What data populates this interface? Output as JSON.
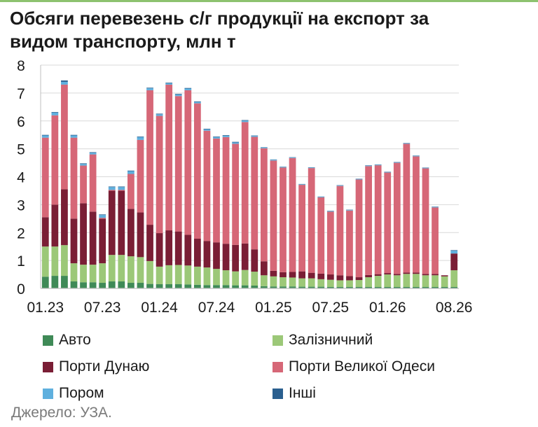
{
  "title_line1": "Обсяги перевезень с/г продукції на експорт за",
  "title_line2": "видом транспорту, млн т",
  "source": "Джерело: УЗА.",
  "colors": {
    "auto": "#3f8a57",
    "rail": "#9cc878",
    "danube": "#7a1e35",
    "odesa": "#d66777",
    "ferry": "#5fb0de",
    "other": "#2a5f8f",
    "grid": "#d9d9d9",
    "axis": "#bfbfbf",
    "top_rule": "#8dc26f"
  },
  "chart_data": {
    "type": "bar",
    "stacked": true,
    "title": "Обсяги перевезень с/г продукції на експорт за видом транспорту, млн т",
    "ylim": [
      0,
      8
    ],
    "yticks": [
      "0",
      "1",
      "2",
      "3",
      "4",
      "5",
      "6",
      "7",
      "8"
    ],
    "grid": true,
    "legend_position": "bottom",
    "categories": [
      "01.23",
      "02.23",
      "03.23",
      "04.23",
      "05.23",
      "06.23",
      "07.23",
      "08.23",
      "09.23",
      "10.23",
      "11.23",
      "12.23",
      "01.24",
      "02.24",
      "03.24",
      "04.24",
      "05.24",
      "06.24",
      "07.24",
      "08.24",
      "09.24",
      "10.24",
      "11.24",
      "12.24",
      "01.25",
      "02.25",
      "03.25",
      "04.25",
      "05.25",
      "06.25",
      "07.25",
      "08.25",
      "09.25",
      "10.25",
      "11.25",
      "12.25",
      "01.26",
      "02.26",
      "03.26",
      "04.26",
      "05.26",
      "06.26",
      "07.26",
      "08.26"
    ],
    "xtick_labels": [
      "01.23",
      "07.23",
      "01.24",
      "07.24",
      "01.25",
      "07.25",
      "01.26",
      "08.26"
    ],
    "series": [
      {
        "name": "Авто",
        "key": "auto",
        "values": [
          0.42,
          0.45,
          0.45,
          0.25,
          0.22,
          0.22,
          0.2,
          0.25,
          0.25,
          0.2,
          0.2,
          0.16,
          0.15,
          0.15,
          0.15,
          0.14,
          0.13,
          0.12,
          0.12,
          0.12,
          0.11,
          0.11,
          0.1,
          0.08,
          0.07,
          0.07,
          0.07,
          0.06,
          0.06,
          0.06,
          0.05,
          0.05,
          0.05,
          0.05,
          0.05,
          0.05,
          0.05,
          0.05,
          0.05,
          0.05,
          0.05,
          0.05,
          0.05,
          0.05
        ]
      },
      {
        "name": "Залізничний",
        "key": "rail",
        "values": [
          1.08,
          1.05,
          1.1,
          0.65,
          0.63,
          0.63,
          0.7,
          0.95,
          0.95,
          0.95,
          0.92,
          0.82,
          0.63,
          0.68,
          0.69,
          0.68,
          0.65,
          0.63,
          0.58,
          0.53,
          0.5,
          0.55,
          0.5,
          0.39,
          0.36,
          0.33,
          0.32,
          0.3,
          0.3,
          0.27,
          0.26,
          0.24,
          0.24,
          0.25,
          0.35,
          0.4,
          0.45,
          0.42,
          0.47,
          0.47,
          0.42,
          0.42,
          0.38,
          0.6
        ]
      },
      {
        "name": "Порти Дунаю",
        "key": "danube",
        "values": [
          1.05,
          1.5,
          2.0,
          1.6,
          2.2,
          1.9,
          1.6,
          2.3,
          2.3,
          1.7,
          1.6,
          1.3,
          1.2,
          1.25,
          1.2,
          1.1,
          1.0,
          0.95,
          0.95,
          0.95,
          0.95,
          0.95,
          0.8,
          0.5,
          0.2,
          0.18,
          0.2,
          0.25,
          0.2,
          0.2,
          0.19,
          0.18,
          0.15,
          0.1,
          0.08,
          0.06,
          0.05,
          0.05,
          0.05,
          0.05,
          0.05,
          0.05,
          0.04,
          0.6
        ]
      },
      {
        "name": "Порти Великої Одеси",
        "key": "odesa",
        "values": [
          2.85,
          3.2,
          3.75,
          2.9,
          1.35,
          2.05,
          0.03,
          0.03,
          0.03,
          1.25,
          2.6,
          4.82,
          4.2,
          5.22,
          4.85,
          5.18,
          4.85,
          3.95,
          3.72,
          3.82,
          3.62,
          4.35,
          4.03,
          4.05,
          3.95,
          3.75,
          4.08,
          3.1,
          3.75,
          2.73,
          2.25,
          3.2,
          2.35,
          3.5,
          3.9,
          3.9,
          3.6,
          3.98,
          4.61,
          4.16,
          3.78,
          2.38,
          0,
          0
        ]
      },
      {
        "name": "Пором",
        "key": "ferry",
        "values": [
          0.08,
          0.1,
          0.1,
          0.08,
          0.06,
          0.06,
          0.1,
          0.1,
          0.1,
          0.1,
          0.1,
          0.07,
          0.06,
          0.05,
          0.06,
          0.06,
          0.05,
          0.05,
          0.05,
          0.05,
          0.05,
          0.05,
          0.04,
          0.03,
          0.03,
          0.02,
          0.02,
          0.02,
          0.02,
          0.02,
          0.02,
          0.02,
          0.02,
          0.02,
          0.02,
          0.02,
          0.02,
          0.02,
          0.02,
          0.02,
          0.02,
          0.02,
          0,
          0.1
        ]
      },
      {
        "name": "Інші",
        "key": "other",
        "values": [
          0.02,
          0.02,
          0.05,
          0.02,
          0.02,
          0.02,
          0.02,
          0.02,
          0.02,
          0.02,
          0.02,
          0.02,
          0.02,
          0.02,
          0.02,
          0.02,
          0.02,
          0.02,
          0.02,
          0.02,
          0.02,
          0.02,
          0.01,
          0.01,
          0.01,
          0.01,
          0.01,
          0.01,
          0.01,
          0.01,
          0.01,
          0.01,
          0.01,
          0.01,
          0.01,
          0.01,
          0.01,
          0.01,
          0.01,
          0.01,
          0.01,
          0.01,
          0,
          0.02
        ]
      }
    ]
  },
  "legend": [
    {
      "key": "auto",
      "label": "Авто"
    },
    {
      "key": "rail",
      "label": "Залізничний"
    },
    {
      "key": "danube",
      "label": "Порти Дунаю"
    },
    {
      "key": "odesa",
      "label": "Порти Великої Одеси"
    },
    {
      "key": "ferry",
      "label": "Пором"
    },
    {
      "key": "other",
      "label": "Інші"
    }
  ]
}
